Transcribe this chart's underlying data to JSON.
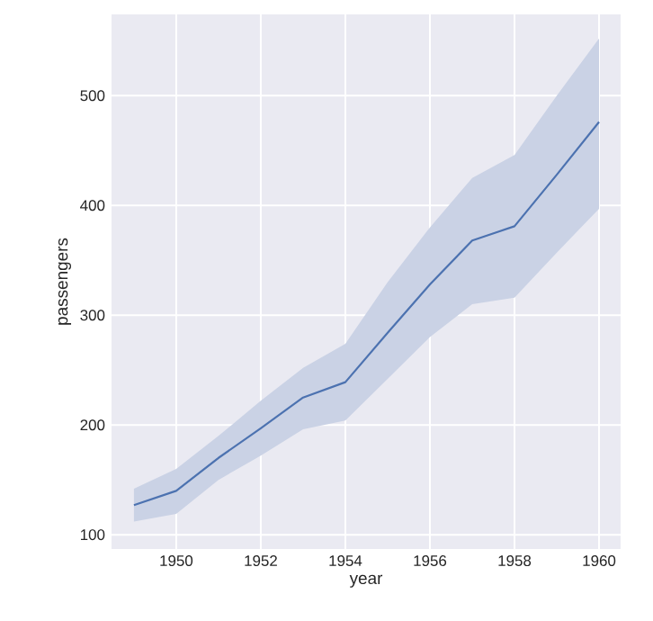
{
  "chart_data": {
    "type": "line",
    "xlabel": "year",
    "ylabel": "passengers",
    "x": [
      1949,
      1950,
      1951,
      1952,
      1953,
      1954,
      1955,
      1956,
      1957,
      1958,
      1959,
      1960
    ],
    "series": [
      {
        "color": "#4c72b0",
        "values": [
          127,
          140,
          170,
          197,
          225,
          239,
          284,
          328,
          368,
          381,
          428,
          476
        ],
        "lower": [
          112,
          119,
          150,
          172,
          196,
          204,
          242,
          280,
          310,
          316,
          357,
          397
        ],
        "upper": [
          142,
          160,
          190,
          222,
          252,
          274,
          330,
          380,
          425,
          446,
          500,
          552
        ]
      }
    ],
    "xlim": [
      1948.47,
      1960.51
    ],
    "ylim": [
      87,
      574
    ],
    "xticks": [
      1950,
      1952,
      1954,
      1956,
      1958,
      1960
    ],
    "yticks": [
      100,
      200,
      300,
      400,
      500
    ],
    "grid": true,
    "marker": "none",
    "line_style": "solid"
  }
}
